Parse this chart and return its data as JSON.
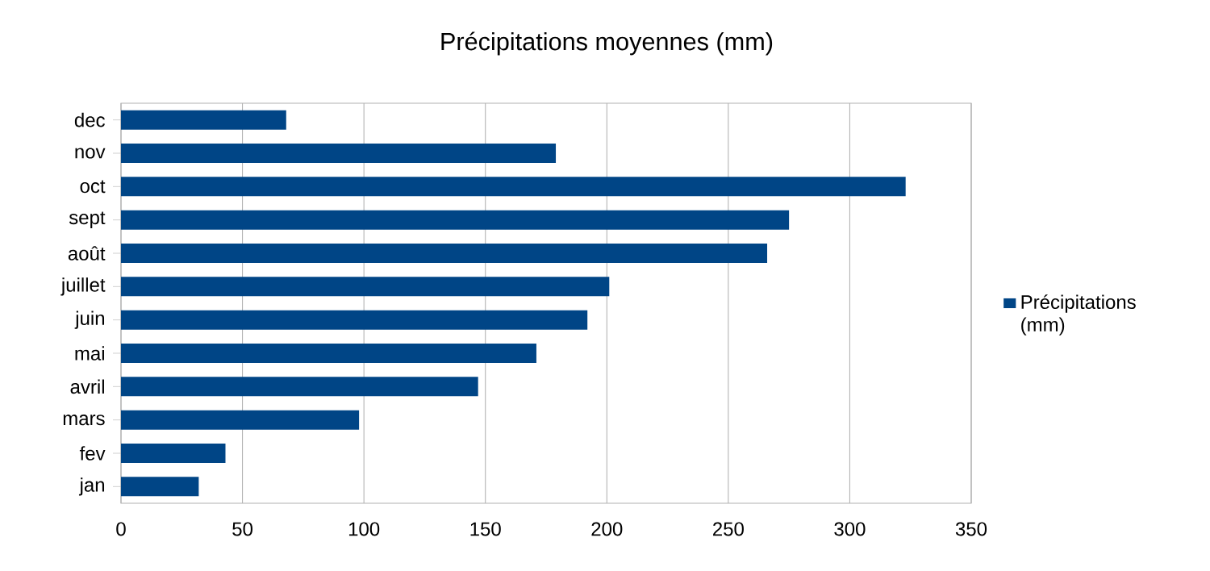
{
  "chart_data": {
    "type": "bar",
    "orientation": "horizontal",
    "title": "Précipitations moyennes (mm)",
    "categories": [
      "dec",
      "nov",
      "oct",
      "sept",
      "août",
      "juillet",
      "juin",
      "mai",
      "avril",
      "mars",
      "fev",
      "jan"
    ],
    "series": [
      {
        "name": "Précipitations (mm)",
        "color": "#004586",
        "values": [
          68,
          179,
          323,
          275,
          266,
          201,
          192,
          171,
          147,
          98,
          43,
          32
        ]
      }
    ],
    "xlim": [
      0,
      350
    ],
    "xticks": [
      0,
      50,
      100,
      150,
      200,
      250,
      300,
      350
    ],
    "grid": "x",
    "legend": "right"
  }
}
